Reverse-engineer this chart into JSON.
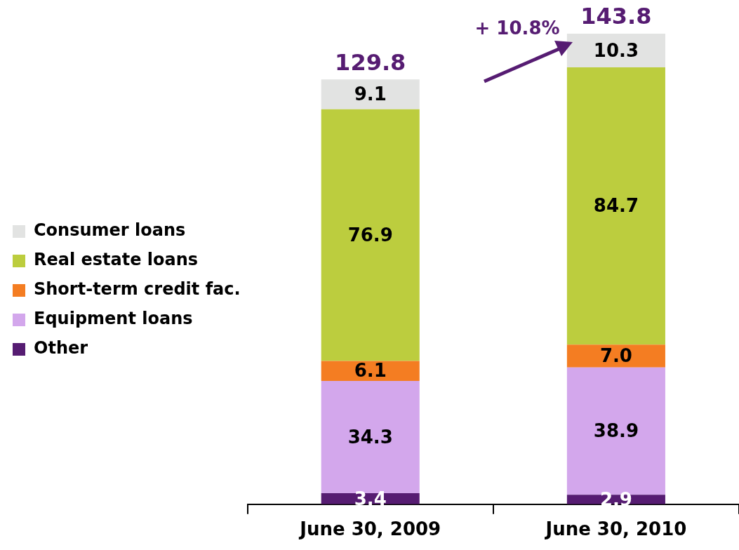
{
  "chart_data": {
    "type": "bar",
    "stacked": true,
    "categories": [
      "June 30, 2009",
      "June 30, 2010"
    ],
    "series": [
      {
        "name": "Other",
        "color": "#561c72",
        "values": [
          3.4,
          2.9
        ]
      },
      {
        "name": "Equipment loans",
        "color": "#d3a7ec",
        "values": [
          34.3,
          38.9
        ]
      },
      {
        "name": "Short-term credit fac.",
        "color": "#f47d22",
        "values": [
          6.1,
          7.0
        ],
        "value_labels": [
          "6.1",
          "7.0"
        ]
      },
      {
        "name": "Real estate loans",
        "color": "#bccd3e",
        "values": [
          76.9,
          84.7
        ]
      },
      {
        "name": "Consumer loans",
        "color": "#e2e3e2",
        "values": [
          9.1,
          10.3
        ]
      }
    ],
    "data_labels": true,
    "totals": [
      "129.8",
      "143.8"
    ],
    "annotations": [
      "+ 10.8%"
    ],
    "legend": "left",
    "grid": false,
    "tick_labels": "x"
  }
}
